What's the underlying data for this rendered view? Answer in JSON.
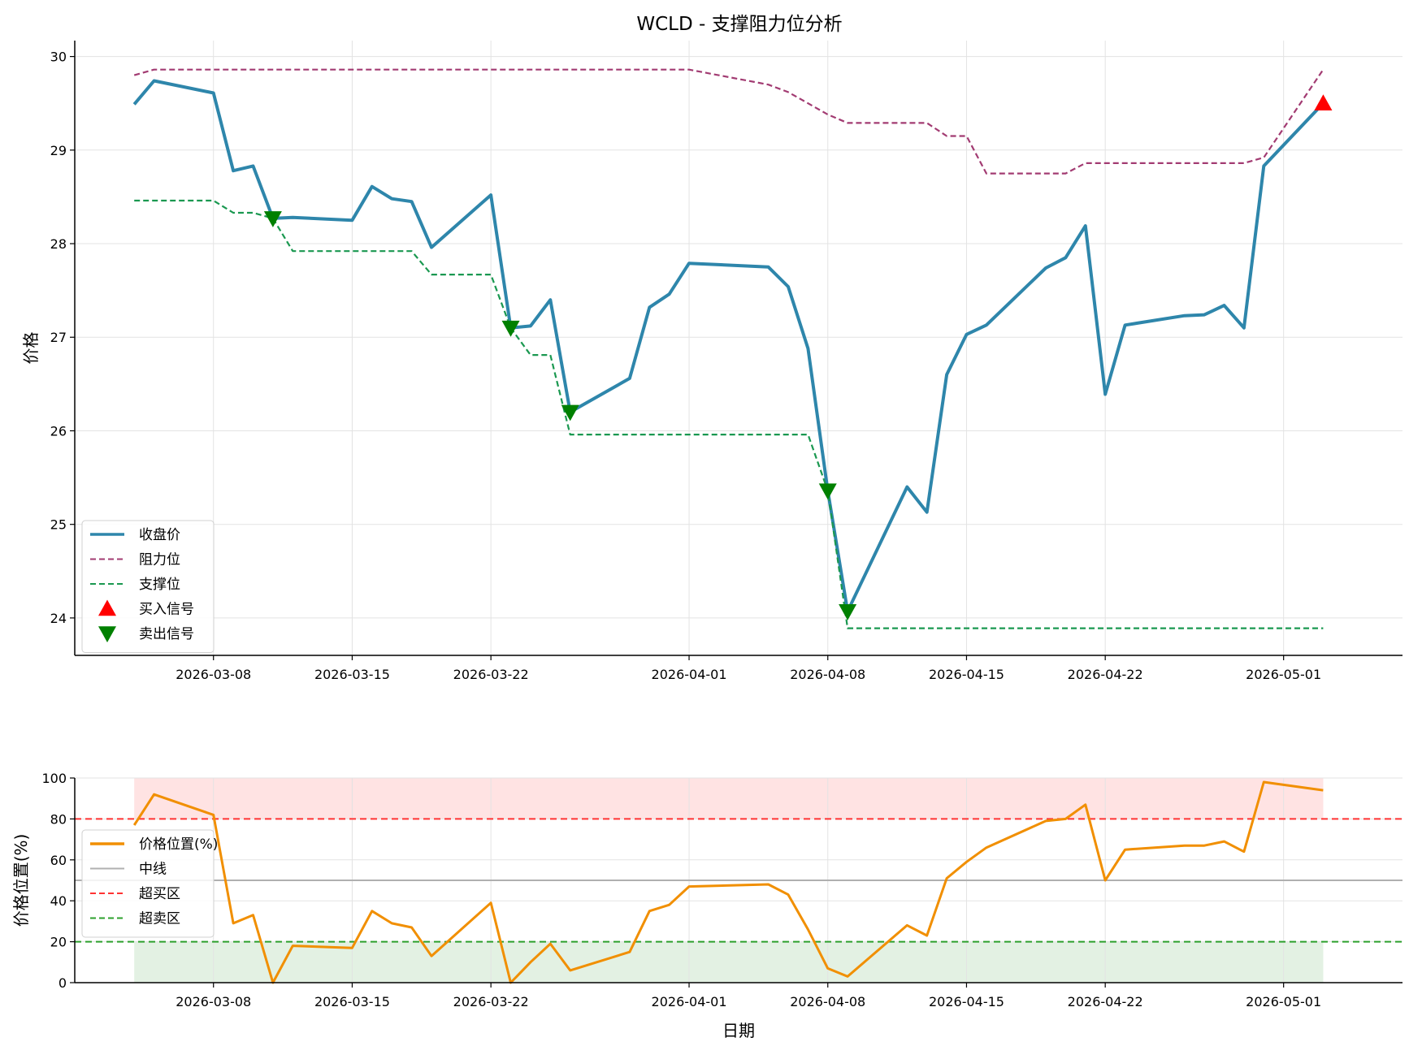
{
  "page": {
    "title": "WCLD - 支撑阻力位分析"
  },
  "chart_data": [
    {
      "type": "line",
      "title": "WCLD - 支撑阻力位分析",
      "xlabel": "",
      "ylabel": "价格",
      "ylim": [
        23.6,
        30.17
      ],
      "yticks": [
        24,
        25,
        26,
        27,
        28,
        29,
        30
      ],
      "xlim": [
        "2026-03-01",
        "2026-05-07"
      ],
      "xticks": [
        "2026-03-08",
        "2026-03-15",
        "2026-03-22",
        "2026-04-01",
        "2026-04-08",
        "2026-04-15",
        "2026-04-22",
        "2026-05-01"
      ],
      "grid": true,
      "legend_position": "lower-left",
      "x": [
        "2026-03-04",
        "2026-03-05",
        "2026-03-08",
        "2026-03-09",
        "2026-03-10",
        "2026-03-11",
        "2026-03-12",
        "2026-03-15",
        "2026-03-16",
        "2026-03-17",
        "2026-03-18",
        "2026-03-19",
        "2026-03-22",
        "2026-03-23",
        "2026-03-24",
        "2026-03-25",
        "2026-03-26",
        "2026-03-29",
        "2026-03-30",
        "2026-03-31",
        "2026-04-01",
        "2026-04-05",
        "2026-04-06",
        "2026-04-07",
        "2026-04-08",
        "2026-04-09",
        "2026-04-12",
        "2026-04-13",
        "2026-04-14",
        "2026-04-15",
        "2026-04-16",
        "2026-04-19",
        "2026-04-20",
        "2026-04-21",
        "2026-04-22",
        "2026-04-23",
        "2026-04-26",
        "2026-04-27",
        "2026-04-28",
        "2026-04-29",
        "2026-04-30",
        "2026-05-03"
      ],
      "series": [
        {
          "name": "收盘价",
          "color": "#2e86ab",
          "style": "solid",
          "values": [
            29.49,
            29.74,
            29.61,
            28.78,
            28.83,
            28.27,
            28.28,
            28.25,
            28.61,
            28.48,
            28.45,
            27.96,
            28.52,
            27.1,
            27.12,
            27.4,
            26.2,
            26.56,
            27.32,
            27.46,
            27.79,
            27.75,
            27.54,
            26.88,
            25.36,
            24.07,
            25.4,
            25.13,
            26.6,
            27.03,
            27.13,
            27.74,
            27.85,
            28.19,
            26.39,
            27.13,
            27.23,
            27.24,
            27.34,
            27.1,
            28.83,
            29.5
          ]
        },
        {
          "name": "阻力位",
          "color": "#a23b72",
          "style": "dashed",
          "values": [
            29.8,
            29.86,
            29.86,
            29.86,
            29.86,
            29.86,
            29.86,
            29.86,
            29.86,
            29.86,
            29.86,
            29.86,
            29.86,
            29.86,
            29.86,
            29.86,
            29.86,
            29.86,
            29.86,
            29.86,
            29.86,
            29.7,
            29.62,
            29.5,
            29.38,
            29.29,
            29.29,
            29.29,
            29.15,
            29.15,
            28.75,
            28.75,
            28.75,
            28.86,
            28.86,
            28.86,
            28.86,
            28.86,
            28.86,
            28.86,
            28.92,
            29.86
          ]
        },
        {
          "name": "支撑位",
          "color": "#1a9850",
          "style": "dashed",
          "values": [
            28.46,
            28.46,
            28.46,
            28.33,
            28.33,
            28.27,
            27.92,
            27.92,
            27.92,
            27.92,
            27.92,
            27.67,
            27.67,
            27.1,
            26.81,
            26.81,
            25.96,
            25.96,
            25.96,
            25.96,
            25.96,
            25.96,
            25.96,
            25.96,
            25.36,
            23.89,
            23.89,
            23.89,
            23.89,
            23.89,
            23.89,
            23.89,
            23.89,
            23.89,
            23.89,
            23.89,
            23.89,
            23.89,
            23.89,
            23.89,
            23.89,
            23.89
          ]
        }
      ],
      "buy_signals": {
        "name": "买入信号",
        "color": "#ff0000",
        "points": [
          {
            "x": "2026-05-03",
            "y": 29.5
          }
        ]
      },
      "sell_signals": {
        "name": "卖出信号",
        "color": "#008000",
        "points": [
          {
            "x": "2026-03-11",
            "y": 28.27
          },
          {
            "x": "2026-03-23",
            "y": 27.1
          },
          {
            "x": "2026-03-26",
            "y": 26.2
          },
          {
            "x": "2026-04-08",
            "y": 25.36
          },
          {
            "x": "2026-04-09",
            "y": 24.07
          }
        ]
      }
    },
    {
      "type": "line",
      "title": "",
      "xlabel": "日期",
      "ylabel": "价格位置(%)",
      "ylim": [
        0,
        100
      ],
      "yticks": [
        0,
        20,
        40,
        60,
        80,
        100
      ],
      "xlim": [
        "2026-03-01",
        "2026-05-07"
      ],
      "xticks": [
        "2026-03-08",
        "2026-03-15",
        "2026-03-22",
        "2026-04-01",
        "2026-04-08",
        "2026-04-15",
        "2026-04-22",
        "2026-05-01"
      ],
      "grid": true,
      "legend_position": "center-left",
      "x": [
        "2026-03-04",
        "2026-03-05",
        "2026-03-08",
        "2026-03-09",
        "2026-03-10",
        "2026-03-11",
        "2026-03-12",
        "2026-03-15",
        "2026-03-16",
        "2026-03-17",
        "2026-03-18",
        "2026-03-19",
        "2026-03-22",
        "2026-03-23",
        "2026-03-24",
        "2026-03-25",
        "2026-03-26",
        "2026-03-29",
        "2026-03-30",
        "2026-03-31",
        "2026-04-01",
        "2026-04-05",
        "2026-04-06",
        "2026-04-07",
        "2026-04-08",
        "2026-04-09",
        "2026-04-12",
        "2026-04-13",
        "2026-04-14",
        "2026-04-15",
        "2026-04-16",
        "2026-04-19",
        "2026-04-20",
        "2026-04-21",
        "2026-04-22",
        "2026-04-23",
        "2026-04-26",
        "2026-04-27",
        "2026-04-28",
        "2026-04-29",
        "2026-04-30",
        "2026-05-03"
      ],
      "series": [
        {
          "name": "价格位置(%)",
          "color": "#f18f01",
          "style": "solid",
          "values": [
            77,
            92,
            82,
            29,
            33,
            0,
            18,
            17,
            35,
            29,
            27,
            13,
            39,
            0,
            10,
            19,
            6,
            15,
            35,
            38,
            47,
            48,
            43,
            26,
            7,
            3,
            28,
            23,
            51,
            59,
            66,
            79,
            80,
            87,
            50,
            65,
            67,
            67,
            69,
            64,
            98,
            94
          ]
        }
      ],
      "reference_lines": [
        {
          "name": "中线",
          "value": 50,
          "color": "#b0b0b0",
          "style": "solid"
        },
        {
          "name": "超买区",
          "value": 80,
          "color": "#ff3333",
          "style": "dashed"
        },
        {
          "name": "超卖区",
          "value": 20,
          "color": "#2ca02c",
          "style": "dashed"
        }
      ],
      "bands": [
        {
          "from": 80,
          "to": 100,
          "color": "#ffcccc"
        },
        {
          "from": 0,
          "to": 20,
          "color": "#cce5cc"
        }
      ]
    }
  ]
}
